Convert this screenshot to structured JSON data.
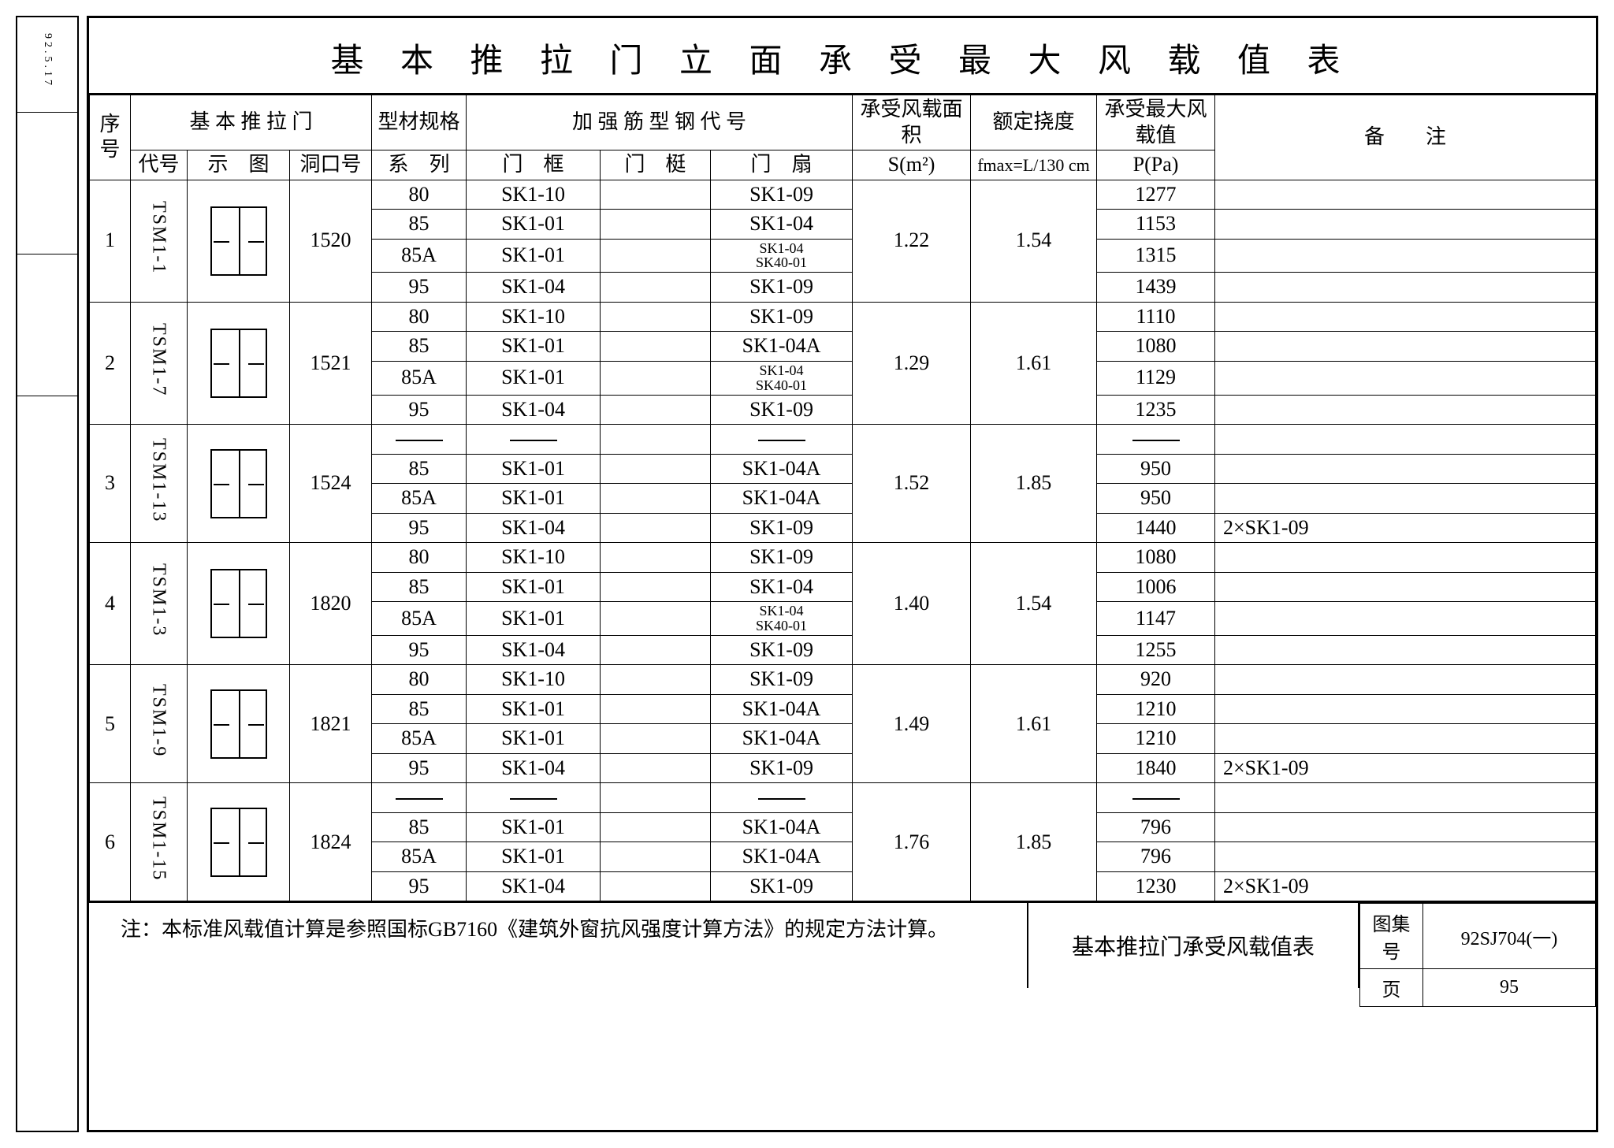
{
  "title": "基 本 推 拉 门 立 面 承 受 最 大 风 载 值 表",
  "headers": {
    "seq": "序号",
    "door_group": "基 本 推 拉 门",
    "code": "代号",
    "figure": "示　图",
    "opening": "洞口号",
    "profile_group": "型材规格",
    "profile_sub": "系　列",
    "reinforce_group": "加 强 筋 型 钢 代 号",
    "frame": "门　框",
    "stile": "门　梃",
    "leaf": "门　扇",
    "area": "承受风载面积",
    "area_sub": "S(m²)",
    "deflection": "额定挠度",
    "deflection_sub": "fmax=L/130 cm",
    "pressure": "承受最大风载值",
    "pressure_sub": "P(Pa)",
    "remarks": "备　　注"
  },
  "groups": [
    {
      "seq": "1",
      "code": "TSM1-1",
      "opening": "1520",
      "S": "1.22",
      "fmax": "1.54",
      "rows": [
        {
          "prof": "80",
          "frame": "SK1-10",
          "stile": "",
          "leaf": "SK1-09",
          "P": "1277",
          "rem": ""
        },
        {
          "prof": "85",
          "frame": "SK1-01",
          "stile": "",
          "leaf": "SK1-04",
          "P": "1153",
          "rem": ""
        },
        {
          "prof": "85A",
          "frame": "SK1-01",
          "stile": "",
          "leaf": "SK1-04\nSK40-01",
          "smallLeaf": true,
          "P": "1315",
          "rem": ""
        },
        {
          "prof": "95",
          "frame": "SK1-04",
          "stile": "",
          "leaf": "SK1-09",
          "P": "1439",
          "rem": ""
        }
      ]
    },
    {
      "seq": "2",
      "code": "TSM1-7",
      "opening": "1521",
      "S": "1.29",
      "fmax": "1.61",
      "rows": [
        {
          "prof": "80",
          "frame": "SK1-10",
          "stile": "",
          "leaf": "SK1-09",
          "P": "1110",
          "rem": ""
        },
        {
          "prof": "85",
          "frame": "SK1-01",
          "stile": "",
          "leaf": "SK1-04A",
          "P": "1080",
          "rem": ""
        },
        {
          "prof": "85A",
          "frame": "SK1-01",
          "stile": "",
          "leaf": "SK1-04\nSK40-01",
          "smallLeaf": true,
          "P": "1129",
          "rem": ""
        },
        {
          "prof": "95",
          "frame": "SK1-04",
          "stile": "",
          "leaf": "SK1-09",
          "P": "1235",
          "rem": ""
        }
      ]
    },
    {
      "seq": "3",
      "code": "TSM1-13",
      "opening": "1524",
      "S": "1.52",
      "fmax": "1.85",
      "rows": [
        {
          "prof": "—",
          "frame": "—",
          "stile": "",
          "leaf": "—",
          "P": "—",
          "rem": "",
          "dash": true
        },
        {
          "prof": "85",
          "frame": "SK1-01",
          "stile": "",
          "leaf": "SK1-04A",
          "P": "950",
          "rem": ""
        },
        {
          "prof": "85A",
          "frame": "SK1-01",
          "stile": "",
          "leaf": "SK1-04A",
          "P": "950",
          "rem": ""
        },
        {
          "prof": "95",
          "frame": "SK1-04",
          "stile": "",
          "leaf": "SK1-09",
          "P": "1440",
          "rem": "2×SK1-09"
        }
      ]
    },
    {
      "seq": "4",
      "code": "TSM1-3",
      "opening": "1820",
      "S": "1.40",
      "fmax": "1.54",
      "rows": [
        {
          "prof": "80",
          "frame": "SK1-10",
          "stile": "",
          "leaf": "SK1-09",
          "P": "1080",
          "rem": ""
        },
        {
          "prof": "85",
          "frame": "SK1-01",
          "stile": "",
          "leaf": "SK1-04",
          "P": "1006",
          "rem": ""
        },
        {
          "prof": "85A",
          "frame": "SK1-01",
          "stile": "",
          "leaf": "SK1-04\nSK40-01",
          "smallLeaf": true,
          "P": "1147",
          "rem": ""
        },
        {
          "prof": "95",
          "frame": "SK1-04",
          "stile": "",
          "leaf": "SK1-09",
          "P": "1255",
          "rem": ""
        }
      ]
    },
    {
      "seq": "5",
      "code": "TSM1-9",
      "opening": "1821",
      "S": "1.49",
      "fmax": "1.61",
      "rows": [
        {
          "prof": "80",
          "frame": "SK1-10",
          "stile": "",
          "leaf": "SK1-09",
          "P": "920",
          "rem": ""
        },
        {
          "prof": "85",
          "frame": "SK1-01",
          "stile": "",
          "leaf": "SK1-04A",
          "P": "1210",
          "rem": ""
        },
        {
          "prof": "85A",
          "frame": "SK1-01",
          "stile": "",
          "leaf": "SK1-04A",
          "P": "1210",
          "rem": ""
        },
        {
          "prof": "95",
          "frame": "SK1-04",
          "stile": "",
          "leaf": "SK1-09",
          "P": "1840",
          "rem": "2×SK1-09"
        }
      ]
    },
    {
      "seq": "6",
      "code": "TSM1-15",
      "opening": "1824",
      "S": "1.76",
      "fmax": "1.85",
      "rows": [
        {
          "prof": "—",
          "frame": "—",
          "stile": "",
          "leaf": "—",
          "P": "—",
          "rem": "",
          "dash": true
        },
        {
          "prof": "85",
          "frame": "SK1-01",
          "stile": "",
          "leaf": "SK1-04A",
          "P": "796",
          "rem": ""
        },
        {
          "prof": "85A",
          "frame": "SK1-01",
          "stile": "",
          "leaf": "SK1-04A",
          "P": "796",
          "rem": ""
        },
        {
          "prof": "95",
          "frame": "SK1-04",
          "stile": "",
          "leaf": "SK1-09",
          "P": "1230",
          "rem": "2×SK1-09"
        }
      ]
    }
  ],
  "footer": {
    "note": "注：本标准风载值计算是参照国标GB7160《建筑外窗抗风强度计算方法》的规定方法计算。",
    "mid": "基本推拉门承受风载值表",
    "album_label": "图集号",
    "album_value": "92SJ704(一)",
    "page_label": "页",
    "page_value": "95"
  },
  "stub": {
    "top": "92.5.17"
  },
  "colors": {
    "line": "#000000",
    "bg": "#ffffff"
  }
}
